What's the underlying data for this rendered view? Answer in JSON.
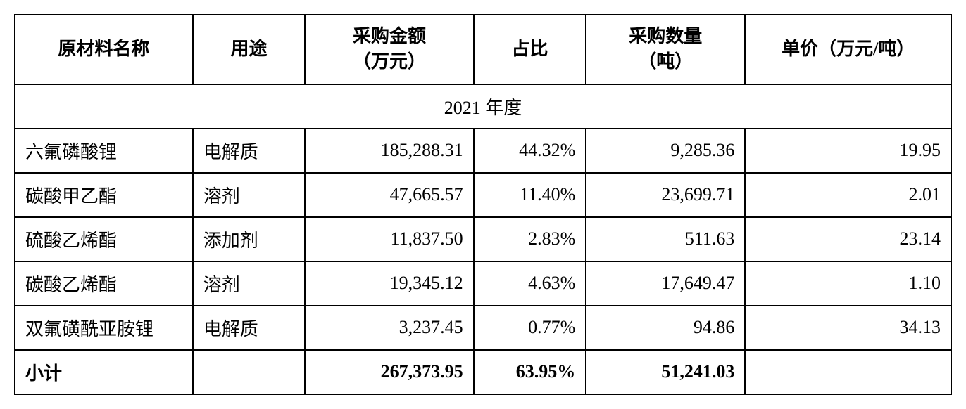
{
  "table": {
    "type": "table",
    "border_color": "#000000",
    "background_color": "#ffffff",
    "text_color": "#000000",
    "font_family": "SimSun",
    "header_fontsize": 26,
    "cell_fontsize": 26,
    "border_width": 2,
    "columns": [
      {
        "key": "name",
        "label": "原材料名称",
        "align": "left",
        "width_pct": 19
      },
      {
        "key": "use",
        "label": "用途",
        "align": "left",
        "width_pct": 12
      },
      {
        "key": "amount",
        "label": "采购金额\n（万元）",
        "align": "right",
        "width_pct": 18
      },
      {
        "key": "ratio",
        "label": "占比",
        "align": "right",
        "width_pct": 12
      },
      {
        "key": "qty",
        "label": "采购数量\n（吨）",
        "align": "right",
        "width_pct": 17
      },
      {
        "key": "price",
        "label": "单价（万元/吨）",
        "align": "right",
        "width_pct": 22
      }
    ],
    "section_label": "2021 年度",
    "rows": [
      {
        "name": "六氟磷酸锂",
        "use": "电解质",
        "amount": "185,288.31",
        "ratio": "44.32%",
        "qty": "9,285.36",
        "price": "19.95"
      },
      {
        "name": "碳酸甲乙酯",
        "use": "溶剂",
        "amount": "47,665.57",
        "ratio": "11.40%",
        "qty": "23,699.71",
        "price": "2.01"
      },
      {
        "name": "硫酸乙烯酯",
        "use": "添加剂",
        "amount": "11,837.50",
        "ratio": "2.83%",
        "qty": "511.63",
        "price": "23.14"
      },
      {
        "name": "碳酸乙烯酯",
        "use": "溶剂",
        "amount": "19,345.12",
        "ratio": "4.63%",
        "qty": "17,649.47",
        "price": "1.10"
      },
      {
        "name": "双氟磺酰亚胺锂",
        "use": "电解质",
        "amount": "3,237.45",
        "ratio": "0.77%",
        "qty": "94.86",
        "price": "34.13"
      }
    ],
    "subtotal": {
      "label": "小计",
      "use": "",
      "amount": "267,373.95",
      "ratio": "63.95%",
      "qty": "51,241.03",
      "price": ""
    }
  }
}
